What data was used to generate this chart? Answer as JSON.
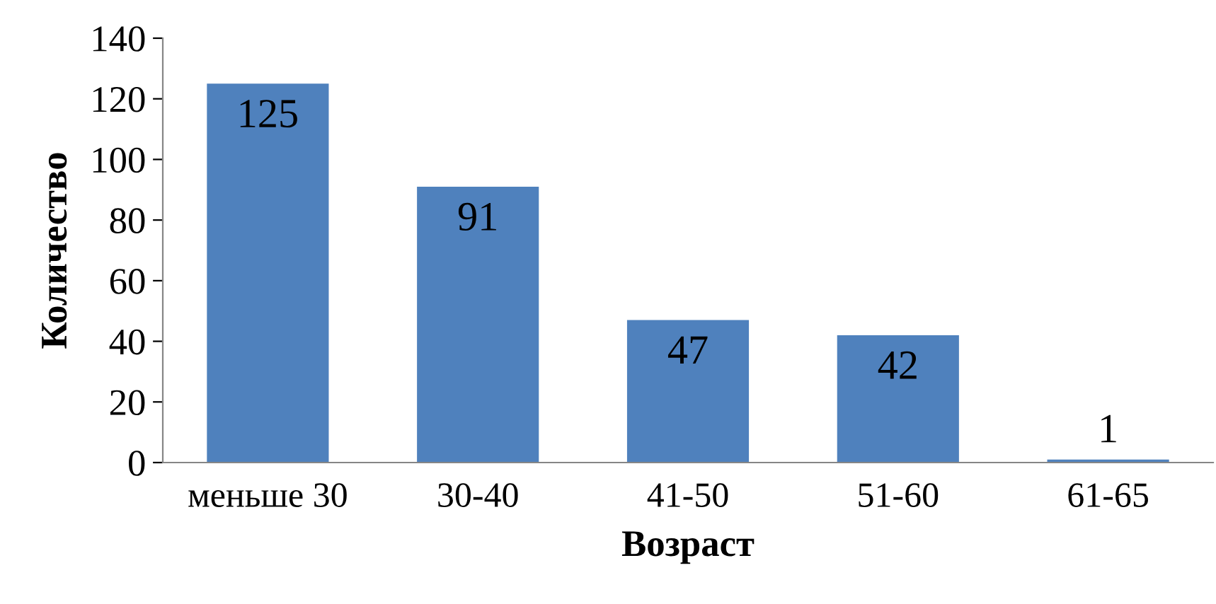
{
  "chart_data": {
    "type": "bar",
    "xlabel": "Возраст",
    "ylabel": "Количество",
    "categories": [
      "меньше 30",
      "30-40",
      "41-50",
      "51-60",
      "61-65"
    ],
    "values": [
      125,
      91,
      47,
      42,
      1
    ],
    "color": "#4f81bd",
    "ylim": [
      0,
      140
    ],
    "yticks": [
      0,
      20,
      40,
      60,
      80,
      100,
      120,
      140
    ],
    "grid": false,
    "data_labels": true
  }
}
